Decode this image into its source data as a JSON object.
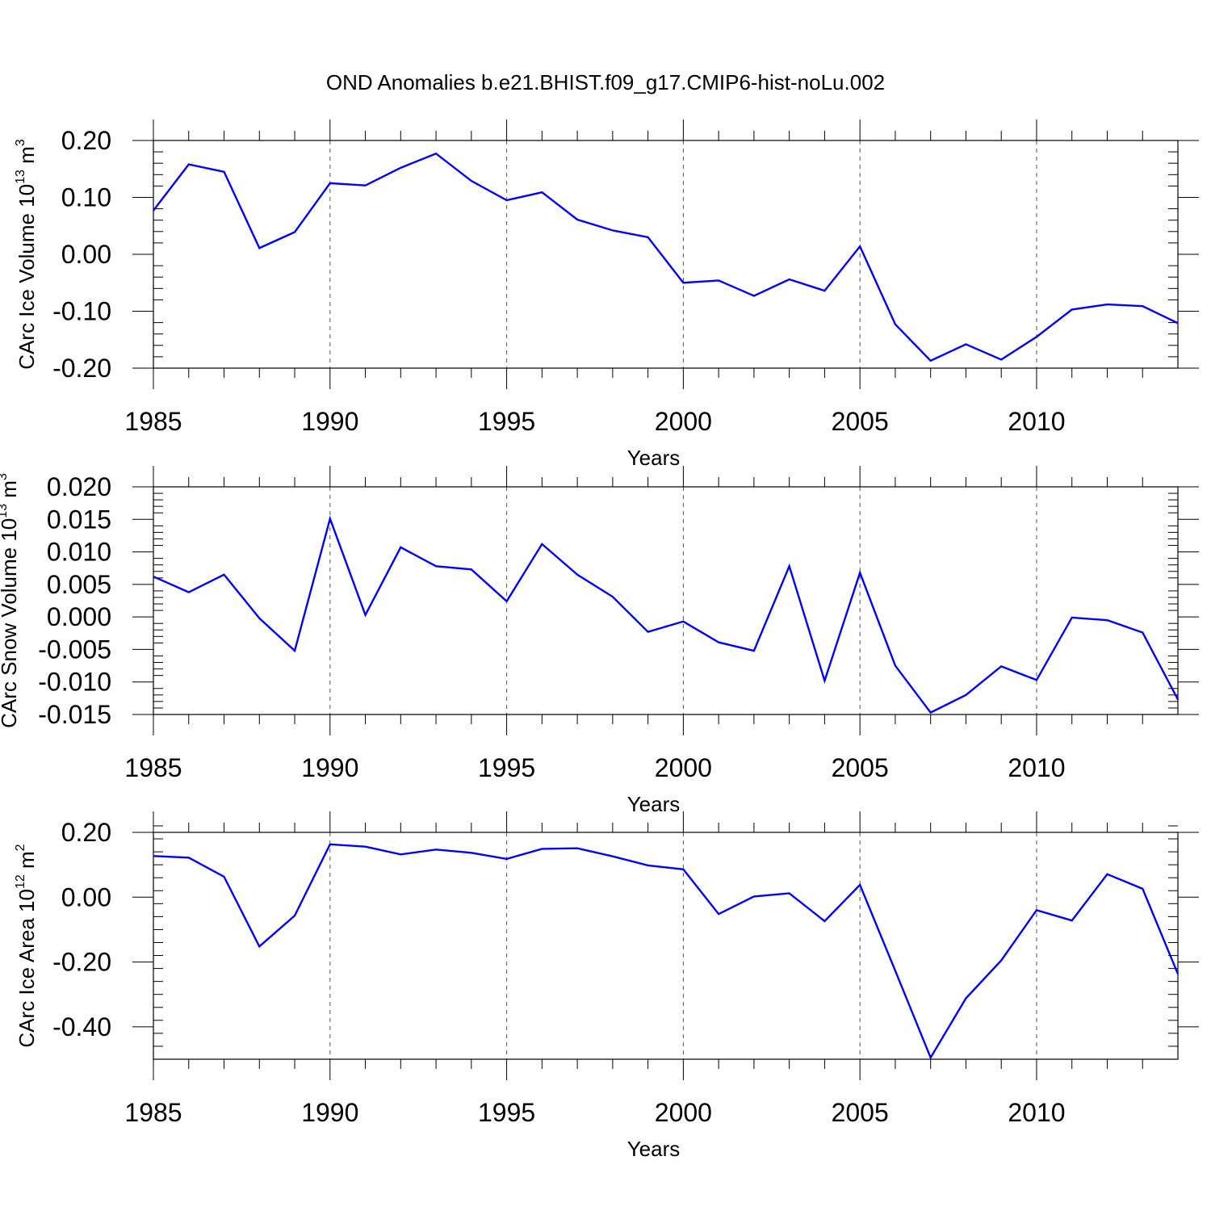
{
  "figure": {
    "title": "OND Anomalies b.e21.BHIST.f09_g17.CMIP6-hist-noLu.002",
    "line_color": "#0000ff",
    "grid_color": "#555555"
  },
  "chart_data": [
    {
      "type": "line",
      "title": "",
      "xlabel": "Years",
      "ylabel": {
        "main": "CArc Ice Volume 10",
        "exp": "13",
        "unit": " m",
        "unit_exp": "3"
      },
      "xlim": [
        1985,
        2014
      ],
      "ylim": [
        -0.2,
        0.2
      ],
      "xticks": [
        1985,
        1990,
        1995,
        2000,
        2005,
        2010
      ],
      "xtick_labels": [
        "1985",
        "1990",
        "1995",
        "2000",
        "2005",
        "2010"
      ],
      "yticks": [
        -0.2,
        -0.1,
        0.0,
        0.1,
        0.2
      ],
      "ytick_labels": [
        "-0.20",
        "-0.10",
        "0.00",
        "0.10",
        "0.20"
      ],
      "grid": "vertical dashed at major x ticks",
      "series": [
        {
          "name": "CArc Ice Volume",
          "x": [
            1985,
            1986,
            1987,
            1988,
            1989,
            1990,
            1991,
            1992,
            1993,
            1994,
            1995,
            1996,
            1997,
            1998,
            1999,
            2000,
            2001,
            2002,
            2003,
            2004,
            2005,
            2006,
            2007,
            2008,
            2009,
            2010,
            2011,
            2012,
            2013,
            2014
          ],
          "values": [
            0.077,
            0.158,
            0.145,
            0.011,
            0.039,
            0.125,
            0.121,
            0.152,
            0.177,
            0.129,
            0.095,
            0.109,
            0.061,
            0.042,
            0.03,
            -0.05,
            -0.046,
            -0.073,
            -0.044,
            -0.064,
            0.014,
            -0.123,
            -0.187,
            -0.158,
            -0.185,
            -0.145,
            -0.097,
            -0.088,
            -0.091,
            -0.121
          ]
        }
      ]
    },
    {
      "type": "line",
      "title": "",
      "xlabel": "Years",
      "ylabel": {
        "main": "CArc Snow Volume 10",
        "exp": "13",
        "unit": " m",
        "unit_exp": "3"
      },
      "xlim": [
        1985,
        2014
      ],
      "ylim": [
        -0.015,
        0.02
      ],
      "xticks": [
        1985,
        1990,
        1995,
        2000,
        2005,
        2010
      ],
      "xtick_labels": [
        "1985",
        "1990",
        "1995",
        "2000",
        "2005",
        "2010"
      ],
      "yticks": [
        -0.015,
        -0.01,
        -0.005,
        0.0,
        0.005,
        0.01,
        0.015,
        0.02
      ],
      "ytick_labels": [
        "-0.015",
        "-0.010",
        "-0.005",
        "0.000",
        "0.005",
        "0.010",
        "0.015",
        "0.020"
      ],
      "grid": "vertical dashed at major x ticks",
      "series": [
        {
          "name": "CArc Snow Volume",
          "x": [
            1985,
            1986,
            1987,
            1988,
            1989,
            1990,
            1991,
            1992,
            1993,
            1994,
            1995,
            1996,
            1997,
            1998,
            1999,
            2000,
            2001,
            2002,
            2003,
            2004,
            2005,
            2006,
            2007,
            2008,
            2009,
            2010,
            2011,
            2012,
            2013,
            2014
          ],
          "values": [
            0.0062,
            0.0038,
            0.0065,
            -0.0002,
            -0.0052,
            0.0151,
            0.0003,
            0.0107,
            0.0078,
            0.0073,
            0.0024,
            0.0112,
            0.0065,
            0.0031,
            -0.0023,
            -0.0007,
            -0.0039,
            -0.0052,
            0.0078,
            -0.0098,
            0.0068,
            -0.0075,
            -0.0147,
            -0.012,
            -0.0076,
            -0.0097,
            -0.0001,
            -0.0005,
            -0.0024,
            -0.0127
          ]
        }
      ]
    },
    {
      "type": "line",
      "title": "",
      "xlabel": "Years",
      "ylabel": {
        "main": "CArc Ice Area 10",
        "exp": "12",
        "unit": " m",
        "unit_exp": "2"
      },
      "xlim": [
        1985,
        2014
      ],
      "ylim": [
        -0.5,
        0.2
      ],
      "xticks": [
        1985,
        1990,
        1995,
        2000,
        2005,
        2010
      ],
      "xtick_labels": [
        "1985",
        "1990",
        "1995",
        "2000",
        "2005",
        "2010"
      ],
      "yticks": [
        -0.4,
        -0.2,
        0.0,
        0.2
      ],
      "ytick_labels": [
        "-0.40",
        "-0.20",
        "0.00",
        "0.20"
      ],
      "grid": "vertical dashed at major x ticks",
      "series": [
        {
          "name": "CArc Ice Area",
          "x": [
            1985,
            1986,
            1987,
            1988,
            1989,
            1990,
            1991,
            1992,
            1993,
            1994,
            1995,
            1996,
            1997,
            1998,
            1999,
            2000,
            2001,
            2002,
            2003,
            2004,
            2005,
            2006,
            2007,
            2008,
            2009,
            2010,
            2011,
            2012,
            2013,
            2014
          ],
          "values": [
            0.127,
            0.122,
            0.063,
            -0.152,
            -0.057,
            0.163,
            0.156,
            0.132,
            0.147,
            0.137,
            0.118,
            0.149,
            0.151,
            0.126,
            0.098,
            0.086,
            -0.052,
            0.002,
            0.012,
            -0.074,
            0.038,
            -0.227,
            -0.495,
            -0.312,
            -0.195,
            -0.04,
            -0.072,
            0.071,
            0.026,
            -0.237
          ]
        }
      ]
    }
  ]
}
